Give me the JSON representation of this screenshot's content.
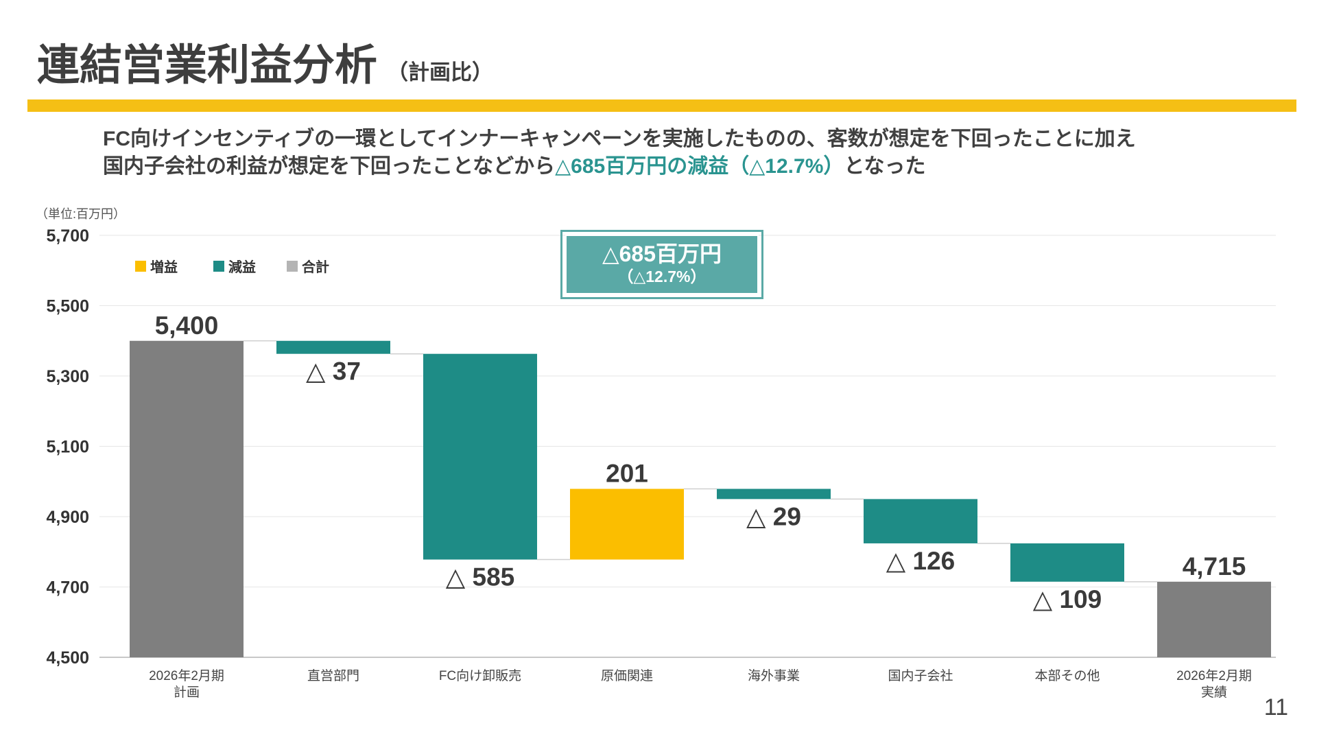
{
  "header": {
    "title": "連結営業利益分析",
    "subtitle": "（計画比）",
    "accent_color": "#f5bf15"
  },
  "summary": {
    "line1": "FC向けインセンティブの一環としてインナーキャンペーンを実施したものの、客数が想定を下回ったことに加え",
    "line2_prefix": "国内子会社の利益が想定を下回ったことなどから",
    "line2_highlight": "△685百万円の減益（△12.7%）",
    "line2_suffix": "となった",
    "highlight_color": "#2a9490"
  },
  "unit_label": "（単位:百万円）",
  "callout": {
    "main": "△685百万円",
    "sub": "（△12.7%）",
    "color": "#5aa9a6"
  },
  "page_number": "11",
  "chart_data": {
    "type": "waterfall",
    "ylim": [
      4500,
      5700
    ],
    "yticks": [
      4500,
      4700,
      4900,
      5100,
      5300,
      5500,
      5700
    ],
    "ytick_labels": [
      "4,500",
      "4,700",
      "4,900",
      "5,100",
      "5,300",
      "5,500",
      "5,700"
    ],
    "grid": true,
    "legend_position": "top-left",
    "legend": [
      {
        "label": "増益",
        "color": "#fbbe00"
      },
      {
        "label": "減益",
        "color": "#1e8c86"
      },
      {
        "label": "合計",
        "color": "#b4b4b4"
      }
    ],
    "colors": {
      "increase": "#fbbe00",
      "decrease": "#1e8c86",
      "total": "#7f7f7f"
    },
    "bars": [
      {
        "category_lines": [
          "2026年2月期",
          "計画"
        ],
        "kind": "total",
        "value": 5400,
        "label": "5,400"
      },
      {
        "category_lines": [
          "直営部門"
        ],
        "kind": "decrease",
        "value": -37,
        "label": "△ 37"
      },
      {
        "category_lines": [
          "FC向け卸販売"
        ],
        "kind": "decrease",
        "value": -585,
        "label": "△ 585"
      },
      {
        "category_lines": [
          "原価関連"
        ],
        "kind": "increase",
        "value": 201,
        "label": "201"
      },
      {
        "category_lines": [
          "海外事業"
        ],
        "kind": "decrease",
        "value": -29,
        "label": "△ 29"
      },
      {
        "category_lines": [
          "国内子会社"
        ],
        "kind": "decrease",
        "value": -126,
        "label": "△ 126"
      },
      {
        "category_lines": [
          "本部その他"
        ],
        "kind": "decrease",
        "value": -109,
        "label": "△ 109"
      },
      {
        "category_lines": [
          "2026年2月期",
          "実績"
        ],
        "kind": "total",
        "value": 4715,
        "label": "4,715"
      }
    ]
  }
}
